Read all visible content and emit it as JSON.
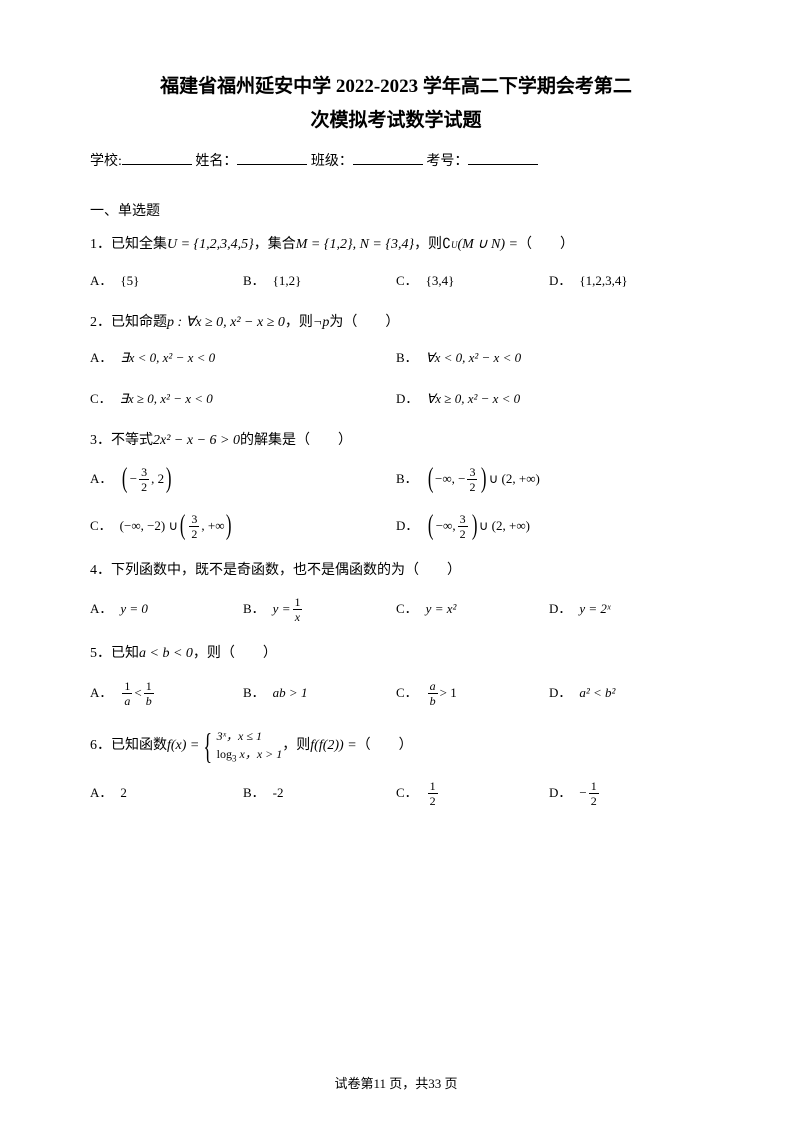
{
  "title_line1": "福建省福州延安中学 2022-2023 学年高二下学期会考第二",
  "title_line2": "次模拟考试数学试题",
  "info": {
    "school": "学校:",
    "name": "姓名：",
    "class": "班级：",
    "id": "考号："
  },
  "section1": "一、单选题",
  "q1": {
    "num": "1．",
    "stem_part1": "已知全集",
    "u_set": "U = {1,2,3,4,5}",
    "stem_part2": "，集合",
    "m_set": "M = {1,2}, N = {3,4}",
    "stem_part3": "，则",
    "expr": "∁",
    "expr_sub": "U",
    "expr2": "(M ∪ N) = ",
    "tail": "（　　）",
    "a": "{5}",
    "b": "{1,2}",
    "c": "{3,4}",
    "d": "{1,2,3,4}"
  },
  "q2": {
    "num": "2．",
    "stem_part1": "已知命题",
    "p": "p : ∀x ≥ 0, x² − x ≥ 0",
    "stem_part2": "，则",
    "neg": "¬p",
    "stem_part3": " 为（　　）",
    "a": "∃x < 0, x² − x < 0",
    "b": "∀x < 0, x² − x < 0",
    "c": "∃x ≥ 0, x² − x < 0",
    "d": "∀x ≥ 0, x² − x < 0"
  },
  "q3": {
    "num": "3．",
    "stem_part1": "不等式",
    "expr": "2x² − x − 6 > 0",
    "stem_part2": " 的解集是（　　）",
    "a_frac_num": "3",
    "a_frac_den": "2",
    "a_rest": ", 2",
    "b_pre": "−∞, −",
    "b_frac_num": "3",
    "b_frac_den": "2",
    "b_rest": "∪ (2, +∞)",
    "c_pre": "(−∞, −2) ∪",
    "c_frac_num": "3",
    "c_frac_den": "2",
    "c_rest": ", +∞",
    "d_pre": "−∞, ",
    "d_frac_num": "3",
    "d_frac_den": "2",
    "d_rest": "∪ (2, +∞)"
  },
  "q4": {
    "num": "4．",
    "stem": "下列函数中，既不是奇函数，也不是偶函数的为（　　）",
    "a": "y = 0",
    "b_pre": "y = ",
    "b_num": "1",
    "b_den": "x",
    "c": "y = x²",
    "d": "y = 2ˣ"
  },
  "q5": {
    "num": "5．",
    "stem_part1": "已知",
    "expr": "a < b < 0",
    "stem_part2": "，则（　　）",
    "a_lnum": "1",
    "a_lden": "a",
    "a_mid": " < ",
    "a_rnum": "1",
    "a_rden": "b",
    "b": "ab > 1",
    "c_num": "a",
    "c_den": "b",
    "c_rest": " > 1",
    "d": "a² < b²"
  },
  "q6": {
    "num": "6．",
    "stem_part1": "已知函数",
    "f_expr": "f(x) = ",
    "case1": "3ˣ，x ≤ 1",
    "case2_pre": "log",
    "case2_sub": "3",
    "case2_post": " x，x > 1",
    "stem_part2": "，则",
    "ff": "f(f(2)) = ",
    "tail": "（　　）",
    "a": "2",
    "b": "-2",
    "c_num": "1",
    "c_den": "2",
    "d_pre": "− ",
    "d_num": "1",
    "d_den": "2"
  },
  "labels": {
    "A": "A．",
    "B": "B．",
    "C": "C．",
    "D": "D．"
  },
  "footer": "试卷第11 页，共33 页"
}
